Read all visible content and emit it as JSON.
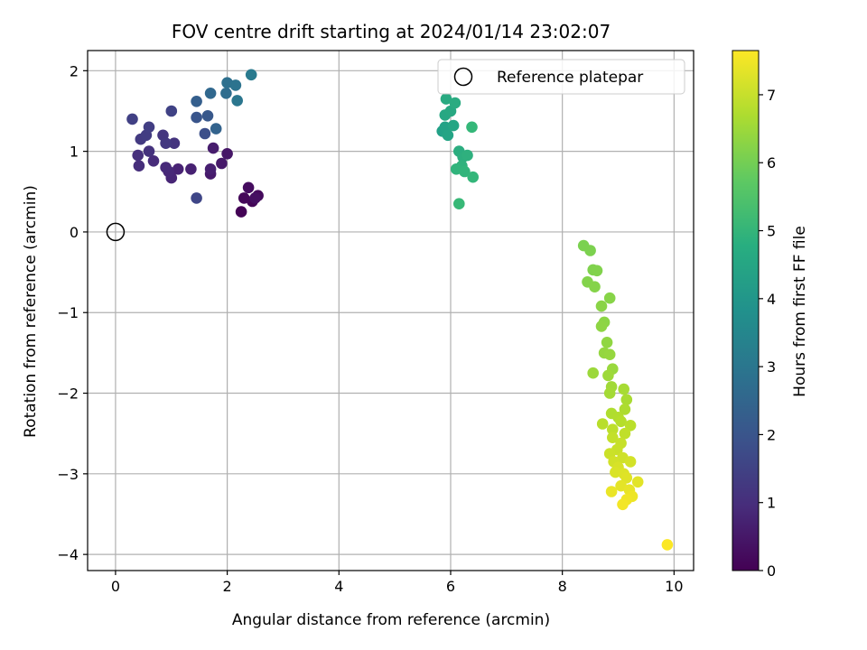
{
  "chart_data": {
    "type": "scatter",
    "title": "FOV centre drift starting at 2024/01/14 23:02:07",
    "xlabel": "Angular distance from reference (arcmin)",
    "ylabel": "Rotation from reference (arcmin)",
    "xlim": [
      -0.5,
      10.35
    ],
    "ylim": [
      -4.2,
      2.25
    ],
    "x_ticks": [
      0,
      2,
      4,
      6,
      8,
      10
    ],
    "x_tick_labels": [
      "0",
      "2",
      "4",
      "6",
      "8",
      "10"
    ],
    "y_ticks": [
      2,
      1,
      0,
      -1,
      -2,
      -3,
      -4
    ],
    "y_tick_labels": [
      "2",
      "1",
      "0",
      "−1",
      "−2",
      "−3",
      "−4"
    ],
    "grid": true,
    "legend": {
      "placement": "top-right",
      "entries": [
        "Reference platepar"
      ]
    },
    "reference_point": {
      "x": 0,
      "y": 0,
      "label": "Reference platepar"
    },
    "colorbar": {
      "label": "Hours from first FF file",
      "range": [
        0,
        7.65
      ],
      "ticks": [
        0,
        1,
        2,
        3,
        4,
        5,
        6,
        7
      ],
      "tick_labels": [
        "0",
        "1",
        "2",
        "3",
        "4",
        "5",
        "6",
        "7"
      ],
      "colormap": "viridis"
    },
    "points": [
      {
        "x": 2.25,
        "y": 0.25,
        "h": 0.05
      },
      {
        "x": 2.45,
        "y": 0.38,
        "h": 0.1
      },
      {
        "x": 2.3,
        "y": 0.42,
        "h": 0.15
      },
      {
        "x": 2.55,
        "y": 0.45,
        "h": 0.2
      },
      {
        "x": 2.38,
        "y": 0.55,
        "h": 0.25
      },
      {
        "x": 2.5,
        "y": 0.42,
        "h": 0.3
      },
      {
        "x": 2.0,
        "y": 0.97,
        "h": 0.45
      },
      {
        "x": 1.9,
        "y": 0.85,
        "h": 0.5
      },
      {
        "x": 1.7,
        "y": 0.72,
        "h": 0.55
      },
      {
        "x": 1.75,
        "y": 1.04,
        "h": 0.6
      },
      {
        "x": 1.7,
        "y": 0.78,
        "h": 0.65
      },
      {
        "x": 1.35,
        "y": 0.78,
        "h": 0.7
      },
      {
        "x": 1.12,
        "y": 0.78,
        "h": 0.75
      },
      {
        "x": 1.0,
        "y": 0.67,
        "h": 0.8
      },
      {
        "x": 0.95,
        "y": 0.75,
        "h": 0.85
      },
      {
        "x": 0.9,
        "y": 0.8,
        "h": 0.9
      },
      {
        "x": 0.68,
        "y": 0.88,
        "h": 0.95
      },
      {
        "x": 0.42,
        "y": 0.82,
        "h": 1.0
      },
      {
        "x": 0.4,
        "y": 0.95,
        "h": 1.05
      },
      {
        "x": 0.6,
        "y": 1.0,
        "h": 1.1
      },
      {
        "x": 1.05,
        "y": 1.1,
        "h": 1.15
      },
      {
        "x": 0.85,
        "y": 1.2,
        "h": 1.2
      },
      {
        "x": 0.9,
        "y": 1.1,
        "h": 1.25
      },
      {
        "x": 0.45,
        "y": 1.15,
        "h": 1.3
      },
      {
        "x": 0.55,
        "y": 1.2,
        "h": 1.35
      },
      {
        "x": 0.6,
        "y": 1.3,
        "h": 1.4
      },
      {
        "x": 0.3,
        "y": 1.4,
        "h": 1.45
      },
      {
        "x": 1.0,
        "y": 1.5,
        "h": 1.5
      },
      {
        "x": 1.45,
        "y": 0.42,
        "h": 1.6
      },
      {
        "x": 1.6,
        "y": 1.22,
        "h": 1.85
      },
      {
        "x": 1.45,
        "y": 1.42,
        "h": 2.0
      },
      {
        "x": 1.65,
        "y": 1.44,
        "h": 2.1
      },
      {
        "x": 1.45,
        "y": 1.62,
        "h": 2.3
      },
      {
        "x": 1.8,
        "y": 1.28,
        "h": 2.4
      },
      {
        "x": 1.7,
        "y": 1.72,
        "h": 2.55
      },
      {
        "x": 1.98,
        "y": 1.72,
        "h": 2.7
      },
      {
        "x": 2.0,
        "y": 1.85,
        "h": 2.8
      },
      {
        "x": 2.15,
        "y": 1.82,
        "h": 2.9
      },
      {
        "x": 2.18,
        "y": 1.63,
        "h": 3.0
      },
      {
        "x": 2.43,
        "y": 1.95,
        "h": 3.15
      },
      {
        "x": 5.85,
        "y": 1.25,
        "h": 4.35
      },
      {
        "x": 5.9,
        "y": 1.3,
        "h": 4.4
      },
      {
        "x": 5.95,
        "y": 1.2,
        "h": 4.45
      },
      {
        "x": 6.05,
        "y": 1.32,
        "h": 4.5
      },
      {
        "x": 5.9,
        "y": 1.45,
        "h": 4.55
      },
      {
        "x": 6.0,
        "y": 1.5,
        "h": 4.6
      },
      {
        "x": 5.92,
        "y": 1.65,
        "h": 4.65
      },
      {
        "x": 6.08,
        "y": 1.6,
        "h": 4.7
      },
      {
        "x": 6.15,
        "y": 1.0,
        "h": 4.75
      },
      {
        "x": 6.22,
        "y": 0.93,
        "h": 4.8
      },
      {
        "x": 6.3,
        "y": 0.95,
        "h": 4.85
      },
      {
        "x": 6.2,
        "y": 0.82,
        "h": 4.9
      },
      {
        "x": 6.1,
        "y": 0.78,
        "h": 4.95
      },
      {
        "x": 6.25,
        "y": 0.75,
        "h": 5.0
      },
      {
        "x": 6.4,
        "y": 0.68,
        "h": 5.05
      },
      {
        "x": 6.38,
        "y": 1.3,
        "h": 5.1
      },
      {
        "x": 6.15,
        "y": 0.35,
        "h": 5.15
      },
      {
        "x": 8.38,
        "y": -0.17,
        "h": 6.1
      },
      {
        "x": 8.5,
        "y": -0.23,
        "h": 6.12
      },
      {
        "x": 8.55,
        "y": -0.47,
        "h": 6.15
      },
      {
        "x": 8.62,
        "y": -0.48,
        "h": 6.18
      },
      {
        "x": 8.45,
        "y": -0.62,
        "h": 6.2
      },
      {
        "x": 8.58,
        "y": -0.68,
        "h": 6.22
      },
      {
        "x": 8.85,
        "y": -0.82,
        "h": 6.25
      },
      {
        "x": 8.7,
        "y": -0.92,
        "h": 6.28
      },
      {
        "x": 8.75,
        "y": -1.12,
        "h": 6.3
      },
      {
        "x": 8.7,
        "y": -1.17,
        "h": 6.33
      },
      {
        "x": 8.8,
        "y": -1.37,
        "h": 6.36
      },
      {
        "x": 8.75,
        "y": -1.5,
        "h": 6.4
      },
      {
        "x": 8.85,
        "y": -1.52,
        "h": 6.43
      },
      {
        "x": 8.9,
        "y": -1.7,
        "h": 6.46
      },
      {
        "x": 8.55,
        "y": -1.75,
        "h": 6.5
      },
      {
        "x": 8.82,
        "y": -1.78,
        "h": 6.53
      },
      {
        "x": 8.88,
        "y": -1.92,
        "h": 6.56
      },
      {
        "x": 8.85,
        "y": -2.0,
        "h": 6.6
      },
      {
        "x": 9.1,
        "y": -1.95,
        "h": 6.63
      },
      {
        "x": 9.15,
        "y": -2.08,
        "h": 6.66
      },
      {
        "x": 9.12,
        "y": -2.2,
        "h": 6.7
      },
      {
        "x": 8.88,
        "y": -2.25,
        "h": 6.73
      },
      {
        "x": 9.0,
        "y": -2.3,
        "h": 6.76
      },
      {
        "x": 9.05,
        "y": -2.35,
        "h": 6.8
      },
      {
        "x": 8.72,
        "y": -2.38,
        "h": 6.83
      },
      {
        "x": 9.22,
        "y": -2.4,
        "h": 6.86
      },
      {
        "x": 8.9,
        "y": -2.45,
        "h": 6.9
      },
      {
        "x": 9.12,
        "y": -2.5,
        "h": 6.93
      },
      {
        "x": 8.9,
        "y": -2.55,
        "h": 6.96
      },
      {
        "x": 9.05,
        "y": -2.62,
        "h": 7.0
      },
      {
        "x": 8.98,
        "y": -2.7,
        "h": 7.03
      },
      {
        "x": 8.85,
        "y": -2.75,
        "h": 7.06
      },
      {
        "x": 9.08,
        "y": -2.8,
        "h": 7.1
      },
      {
        "x": 8.92,
        "y": -2.85,
        "h": 7.13
      },
      {
        "x": 9.22,
        "y": -2.85,
        "h": 7.16
      },
      {
        "x": 9.0,
        "y": -2.92,
        "h": 7.2
      },
      {
        "x": 8.95,
        "y": -2.98,
        "h": 7.23
      },
      {
        "x": 9.1,
        "y": -3.0,
        "h": 7.26
      },
      {
        "x": 9.15,
        "y": -3.05,
        "h": 7.3
      },
      {
        "x": 9.35,
        "y": -3.1,
        "h": 7.33
      },
      {
        "x": 9.05,
        "y": -3.15,
        "h": 7.36
      },
      {
        "x": 9.2,
        "y": -3.2,
        "h": 7.4
      },
      {
        "x": 8.88,
        "y": -3.22,
        "h": 7.43
      },
      {
        "x": 9.25,
        "y": -3.28,
        "h": 7.46
      },
      {
        "x": 9.15,
        "y": -3.32,
        "h": 7.5
      },
      {
        "x": 9.08,
        "y": -3.38,
        "h": 7.53
      },
      {
        "x": 9.88,
        "y": -3.88,
        "h": 7.63
      }
    ]
  }
}
